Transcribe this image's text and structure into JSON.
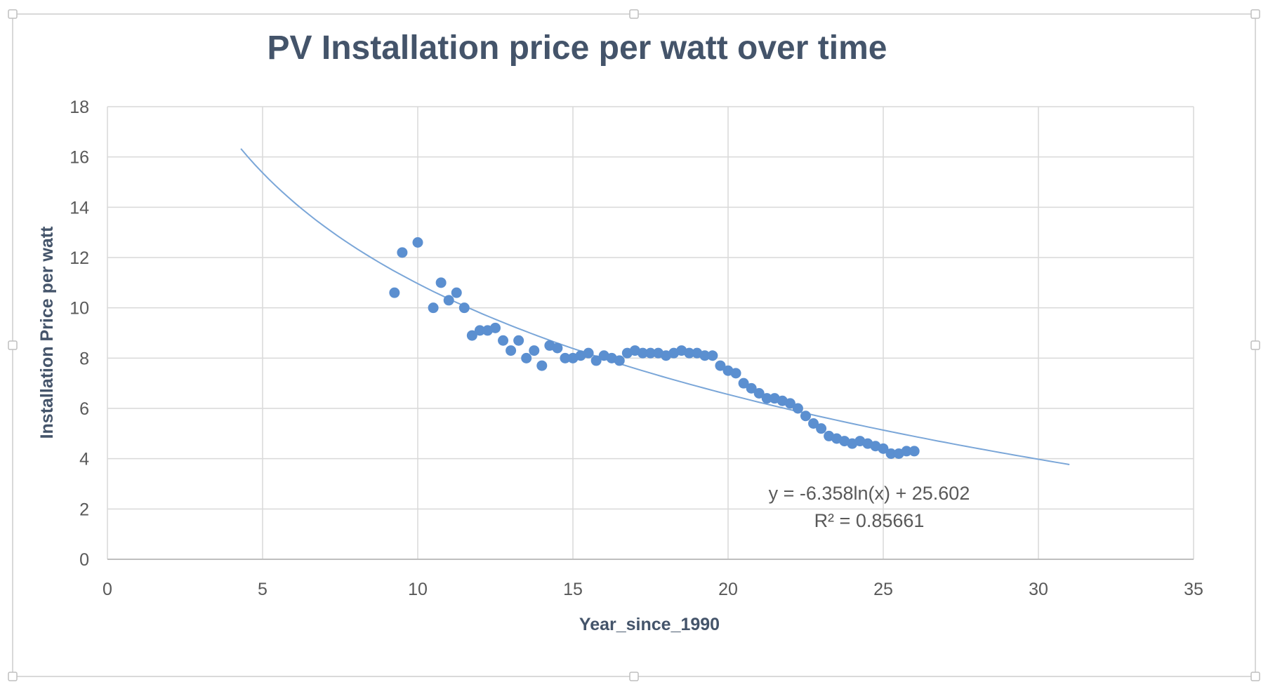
{
  "chart_data": {
    "type": "scatter",
    "title": "PV Installation price per watt over time",
    "xlabel": "Year_since_1990",
    "ylabel": "Installation Price per watt",
    "xlim": [
      0,
      35
    ],
    "ylim": [
      0,
      18
    ],
    "x_ticks": [
      "0",
      "5",
      "10",
      "15",
      "20",
      "25",
      "30",
      "35"
    ],
    "y_ticks": [
      "0",
      "2",
      "4",
      "6",
      "8",
      "10",
      "12",
      "14",
      "16",
      "18"
    ],
    "grid": true,
    "legend": "none",
    "series": [
      {
        "color": "#5b8fd0",
        "points": [
          [
            9.25,
            10.6
          ],
          [
            9.5,
            12.2
          ],
          [
            10.0,
            12.6
          ],
          [
            10.5,
            10.0
          ],
          [
            10.75,
            11.0
          ],
          [
            11.0,
            10.3
          ],
          [
            11.25,
            10.6
          ],
          [
            11.5,
            10.0
          ],
          [
            11.75,
            8.9
          ],
          [
            12.0,
            9.1
          ],
          [
            12.25,
            9.1
          ],
          [
            12.5,
            9.2
          ],
          [
            12.75,
            8.7
          ],
          [
            13.0,
            8.3
          ],
          [
            13.25,
            8.7
          ],
          [
            13.5,
            8.0
          ],
          [
            13.75,
            8.3
          ],
          [
            14.0,
            7.7
          ],
          [
            14.25,
            8.5
          ],
          [
            14.5,
            8.4
          ],
          [
            14.75,
            8.0
          ],
          [
            15.0,
            8.0
          ],
          [
            15.25,
            8.1
          ],
          [
            15.5,
            8.2
          ],
          [
            15.75,
            7.9
          ],
          [
            16.0,
            8.1
          ],
          [
            16.25,
            8.0
          ],
          [
            16.5,
            7.9
          ],
          [
            16.75,
            8.2
          ],
          [
            17.0,
            8.3
          ],
          [
            17.25,
            8.2
          ],
          [
            17.5,
            8.2
          ],
          [
            17.75,
            8.2
          ],
          [
            18.0,
            8.1
          ],
          [
            18.25,
            8.2
          ],
          [
            18.5,
            8.3
          ],
          [
            18.75,
            8.2
          ],
          [
            19.0,
            8.2
          ],
          [
            19.25,
            8.1
          ],
          [
            19.5,
            8.1
          ],
          [
            19.75,
            7.7
          ],
          [
            20.0,
            7.5
          ],
          [
            20.25,
            7.4
          ],
          [
            20.5,
            7.0
          ],
          [
            20.75,
            6.8
          ],
          [
            21.0,
            6.6
          ],
          [
            21.25,
            6.4
          ],
          [
            21.5,
            6.4
          ],
          [
            21.75,
            6.3
          ],
          [
            22.0,
            6.2
          ],
          [
            22.25,
            6.0
          ],
          [
            22.5,
            5.7
          ],
          [
            22.75,
            5.4
          ],
          [
            23.0,
            5.2
          ],
          [
            23.25,
            4.9
          ],
          [
            23.5,
            4.8
          ],
          [
            23.75,
            4.7
          ],
          [
            24.0,
            4.6
          ],
          [
            24.25,
            4.7
          ],
          [
            24.5,
            4.6
          ],
          [
            24.75,
            4.5
          ],
          [
            25.0,
            4.4
          ],
          [
            25.25,
            4.2
          ],
          [
            25.5,
            4.2
          ],
          [
            25.75,
            4.3
          ],
          [
            26.0,
            4.3
          ]
        ]
      }
    ],
    "trendline": {
      "type": "logarithmic",
      "a": -6.358,
      "b": 25.602,
      "x_range": [
        4.3,
        31.0
      ],
      "color": "#7aa6d8",
      "equation": "y = -6.358ln(x) + 25.602",
      "r_squared": "R² = 0.85661"
    },
    "colors": {
      "title": "#44546a",
      "axis_title": "#44546a",
      "tick": "#595959",
      "grid": "#d9d9d9",
      "axis": "#bfbfbf",
      "frame": "#d9d9d9"
    }
  }
}
